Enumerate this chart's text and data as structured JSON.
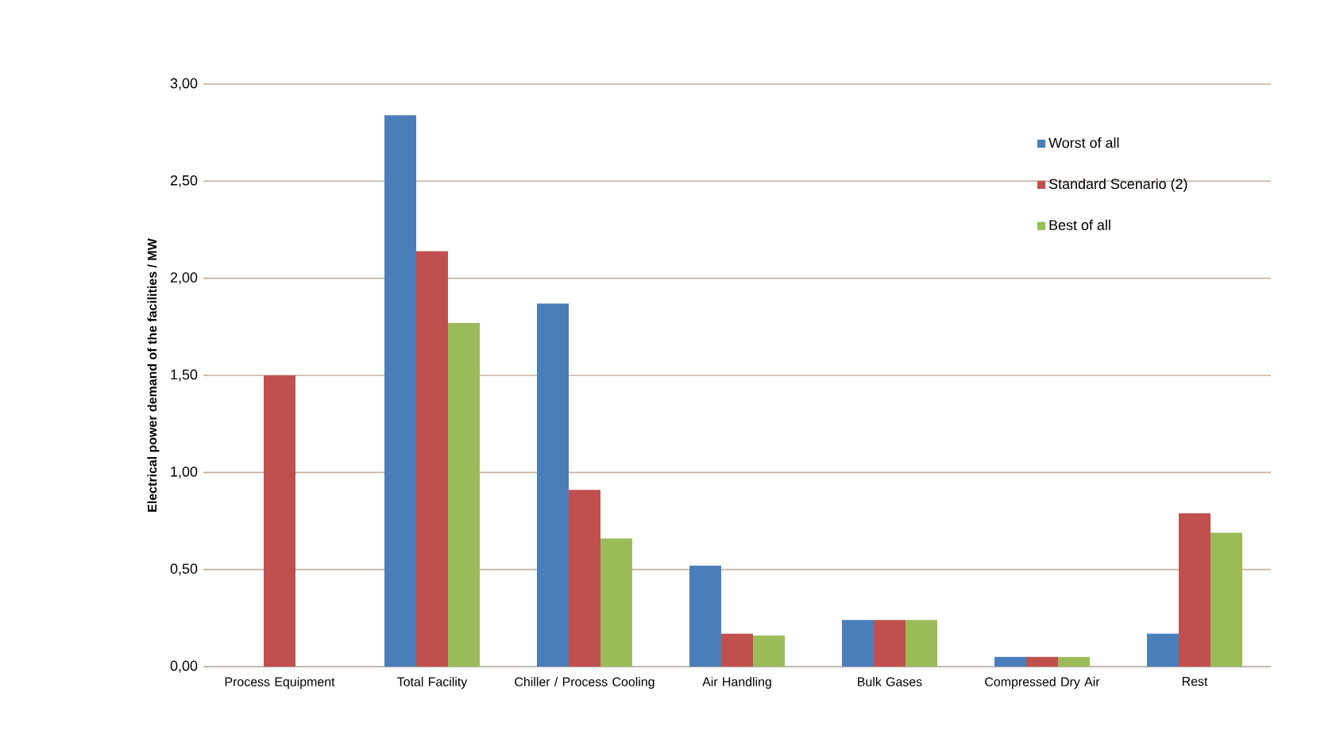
{
  "chart_data": {
    "type": "bar",
    "ylabel": "Electrical power demand of the facilities / MW",
    "categories": [
      "Process Equipment",
      "Total Facility",
      "Chiller / Process Cooling",
      "Air Handling",
      "Bulk Gases",
      "Compressed Dry Air",
      "Rest"
    ],
    "series": [
      {
        "name": "Worst of all",
        "color": "#4a7ebb",
        "values": [
          null,
          2.84,
          1.87,
          0.52,
          0.24,
          0.05,
          0.17
        ]
      },
      {
        "name": "Standard Scenario (2)",
        "color": "#c0504d",
        "values": [
          1.5,
          2.14,
          0.91,
          0.17,
          0.24,
          0.05,
          0.79
        ]
      },
      {
        "name": "Best of all",
        "color": "#9bbb59",
        "values": [
          null,
          1.77,
          0.66,
          0.16,
          0.24,
          0.05,
          0.69
        ]
      }
    ],
    "ylim": [
      0,
      3
    ],
    "yticks": [
      {
        "value": 0,
        "label": "0,00"
      },
      {
        "value": 0.5,
        "label": "0,50"
      },
      {
        "value": 1,
        "label": "1,00"
      },
      {
        "value": 1.5,
        "label": "1,50"
      },
      {
        "value": 2,
        "label": "2,00"
      },
      {
        "value": 2.5,
        "label": "2,50"
      },
      {
        "value": 3,
        "label": "3,00"
      }
    ],
    "grid": "y",
    "legend": "top right"
  }
}
